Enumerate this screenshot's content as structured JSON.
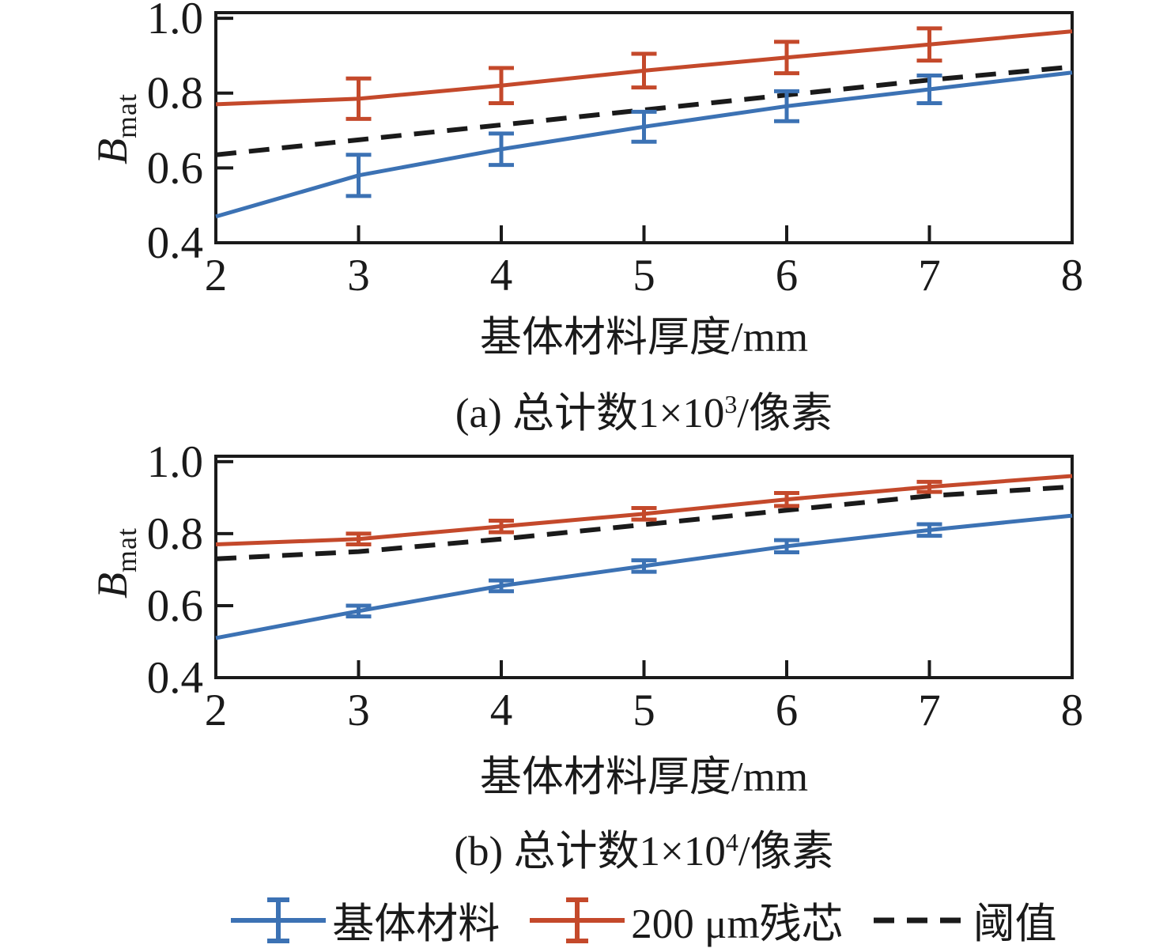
{
  "figure_colors": {
    "base_material": "#3C72B4",
    "residual_core": "#C4492B",
    "threshold": "#1A1A1A",
    "frame": "#1A1A1A"
  },
  "y_axis": {
    "label_main": "B",
    "label_sub": "mat"
  },
  "legend": {
    "position": "bottom",
    "items": [
      {
        "key": "base_material",
        "label": "基体材料",
        "style": "errorbar",
        "color": "#3C72B4"
      },
      {
        "key": "residual_core",
        "label": "200 μm残芯",
        "style": "errorbar",
        "color": "#C4492B"
      },
      {
        "key": "threshold",
        "label": "阈值",
        "style": "dashed",
        "color": "#1A1A1A"
      }
    ]
  },
  "chart_data": [
    {
      "id": "a",
      "type": "line",
      "caption": {
        "prefix": "(a) 总计数1×10",
        "sup": "3",
        "suffix": "/像素"
      },
      "xlabel": "基体材料厚度/mm",
      "ylabel": "B_mat",
      "x": [
        2,
        3,
        4,
        5,
        6,
        7,
        8
      ],
      "xlim": [
        2,
        8
      ],
      "ylim": [
        0.4,
        1.0
      ],
      "yticks": [
        0.4,
        0.6,
        0.8,
        1.0
      ],
      "xticks": [
        2,
        3,
        4,
        5,
        6,
        7,
        8
      ],
      "grid": false,
      "series": [
        {
          "key": "threshold",
          "name": "阈值",
          "style": "dashed",
          "color": "#1A1A1A",
          "values": [
            0.635,
            0.675,
            0.715,
            0.755,
            0.795,
            0.835,
            0.87
          ]
        },
        {
          "key": "base_material",
          "name": "基体材料",
          "style": "solid",
          "color": "#3C72B4",
          "values": [
            0.47,
            0.58,
            0.65,
            0.71,
            0.765,
            0.81,
            0.855
          ],
          "errors": [
            0,
            0.055,
            0.042,
            0.04,
            0.04,
            0.037,
            0
          ]
        },
        {
          "key": "residual_core",
          "name": "200 μm残芯",
          "style": "solid",
          "color": "#C4492B",
          "values": [
            0.77,
            0.785,
            0.82,
            0.86,
            0.895,
            0.93,
            0.965
          ],
          "errors": [
            0,
            0.054,
            0.047,
            0.045,
            0.042,
            0.043,
            0
          ]
        }
      ]
    },
    {
      "id": "b",
      "type": "line",
      "caption": {
        "prefix": "(b) 总计数1×10",
        "sup": "4",
        "suffix": "/像素"
      },
      "xlabel": "基体材料厚度/mm",
      "ylabel": "B_mat",
      "x": [
        2,
        3,
        4,
        5,
        6,
        7,
        8
      ],
      "xlim": [
        2,
        8
      ],
      "ylim": [
        0.4,
        1.0
      ],
      "yticks": [
        0.4,
        0.6,
        0.8,
        1.0
      ],
      "xticks": [
        2,
        3,
        4,
        5,
        6,
        7,
        8
      ],
      "grid": false,
      "series": [
        {
          "key": "threshold",
          "name": "阈值",
          "style": "dashed",
          "color": "#1A1A1A",
          "values": [
            0.73,
            0.75,
            0.785,
            0.825,
            0.865,
            0.905,
            0.93
          ]
        },
        {
          "key": "base_material",
          "name": "基体材料",
          "style": "solid",
          "color": "#3C72B4",
          "values": [
            0.51,
            0.585,
            0.655,
            0.71,
            0.765,
            0.81,
            0.85
          ],
          "errors": [
            0,
            0.015,
            0.015,
            0.016,
            0.017,
            0.016,
            0
          ]
        },
        {
          "key": "residual_core",
          "name": "200 μm残芯",
          "style": "solid",
          "color": "#C4492B",
          "values": [
            0.77,
            0.785,
            0.82,
            0.855,
            0.895,
            0.93,
            0.96
          ],
          "errors": [
            0,
            0.015,
            0.016,
            0.016,
            0.018,
            0.014,
            0
          ]
        }
      ]
    }
  ]
}
